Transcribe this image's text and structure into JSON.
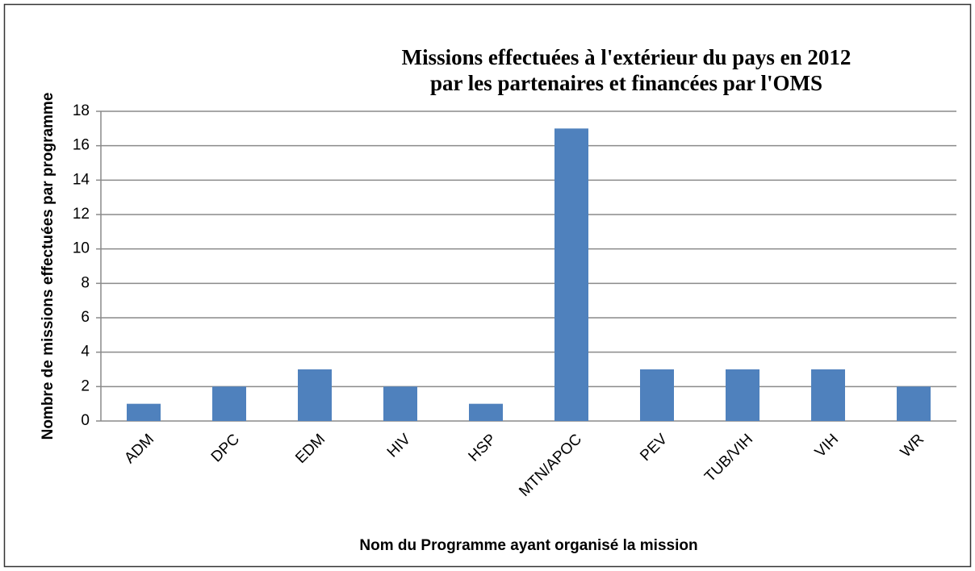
{
  "chart_data": {
    "type": "bar",
    "title": [
      "Missions effectuées à l'extérieur du pays en 2012",
      "par les partenaires et financées par l'OMS"
    ],
    "x_label": "Nom du Programme ayant organisé la mission",
    "y_label": "Nombre de missions effectuées par programme",
    "categories": [
      "ADM",
      "DPC",
      "EDM",
      "HIV",
      "HSP",
      "MTN/APOC",
      "PEV",
      "TUB/VIH",
      "VIH",
      "WR"
    ],
    "values": [
      1,
      2,
      3,
      2,
      1,
      17,
      3,
      3,
      3,
      2
    ],
    "color": "#4f81bd",
    "ylim": [
      0,
      18
    ],
    "yticks": [
      0,
      2,
      4,
      6,
      8,
      10,
      12,
      14,
      16,
      18
    ],
    "grid": true
  }
}
